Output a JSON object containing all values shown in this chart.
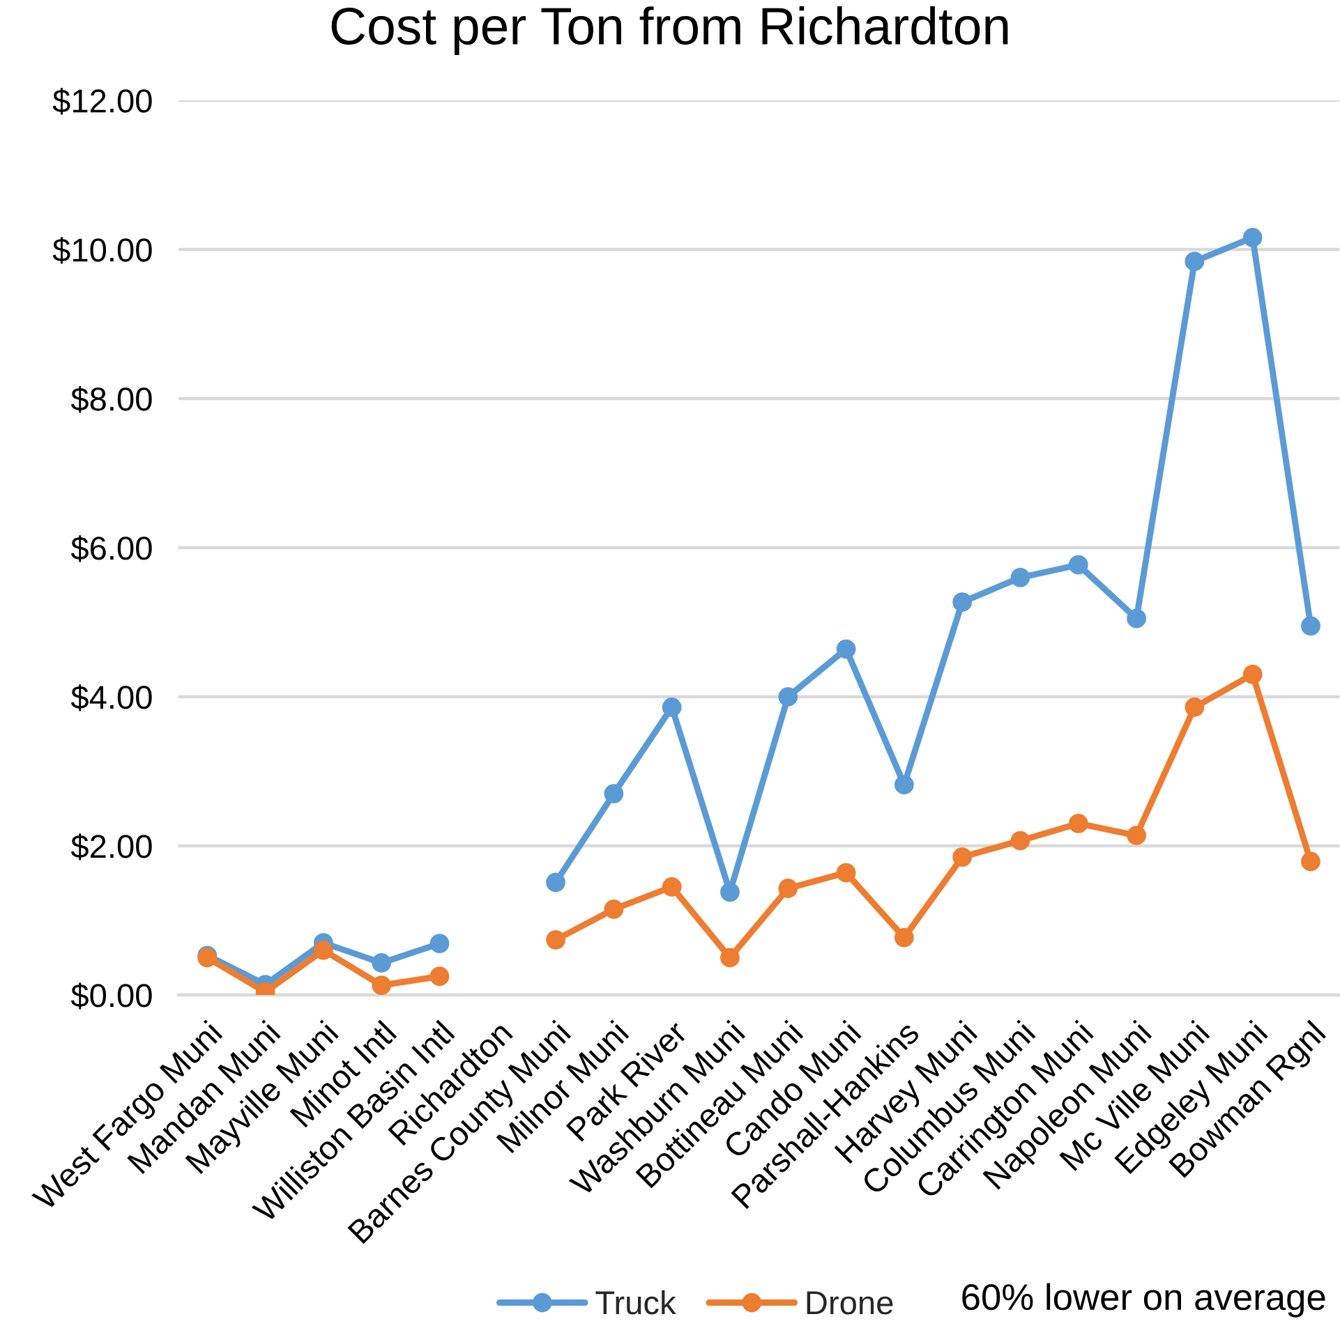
{
  "chart_data": {
    "type": "line",
    "title": "Cost per Ton from Richardton",
    "categories": [
      "West Fargo Muni",
      "Mandan Muni",
      "Mayville Muni",
      "Minot Intl",
      "Williston Basin Intl",
      "Richardton",
      "Barnes County Muni",
      "Milnor Muni",
      "Park River",
      "Washburn Muni",
      "Bottineau Muni",
      "Cando Muni",
      "Parshall-Hankins",
      "Harvey Muni",
      "Columbus Muni",
      "Carrington Muni",
      "Napoleon Muni",
      "Mc Ville Muni",
      "Edgeley Muni",
      "Bowman Rgnl"
    ],
    "series": [
      {
        "name": "Truck",
        "color": "#5b9bd5",
        "values": [
          0.53,
          0.14,
          0.7,
          0.43,
          0.69,
          null,
          1.51,
          2.7,
          3.86,
          1.38,
          4.0,
          4.64,
          2.82,
          5.27,
          5.6,
          5.77,
          5.05,
          9.84,
          10.16,
          4.95
        ]
      },
      {
        "name": "Drone",
        "color": "#ed7d31",
        "values": [
          0.5,
          0.04,
          0.6,
          0.13,
          0.25,
          null,
          0.74,
          1.15,
          1.45,
          0.5,
          1.43,
          1.64,
          0.77,
          1.85,
          2.07,
          2.3,
          2.14,
          3.86,
          4.3,
          1.79
        ]
      }
    ],
    "ylim": [
      0,
      12
    ],
    "yticks": [
      {
        "value": 0,
        "label": "$0.00"
      },
      {
        "value": 2,
        "label": "$2.00"
      },
      {
        "value": 4,
        "label": "$4.00"
      },
      {
        "value": 6,
        "label": "$6.00"
      },
      {
        "value": 8,
        "label": "$8.00"
      },
      {
        "value": 10,
        "label": "$10.00"
      },
      {
        "value": 12,
        "label": "$12.00"
      }
    ],
    "grid": "y",
    "legend": "bottom",
    "marker": "circle",
    "line_style": "solid",
    "annotations": [
      "60% lower on average"
    ]
  }
}
